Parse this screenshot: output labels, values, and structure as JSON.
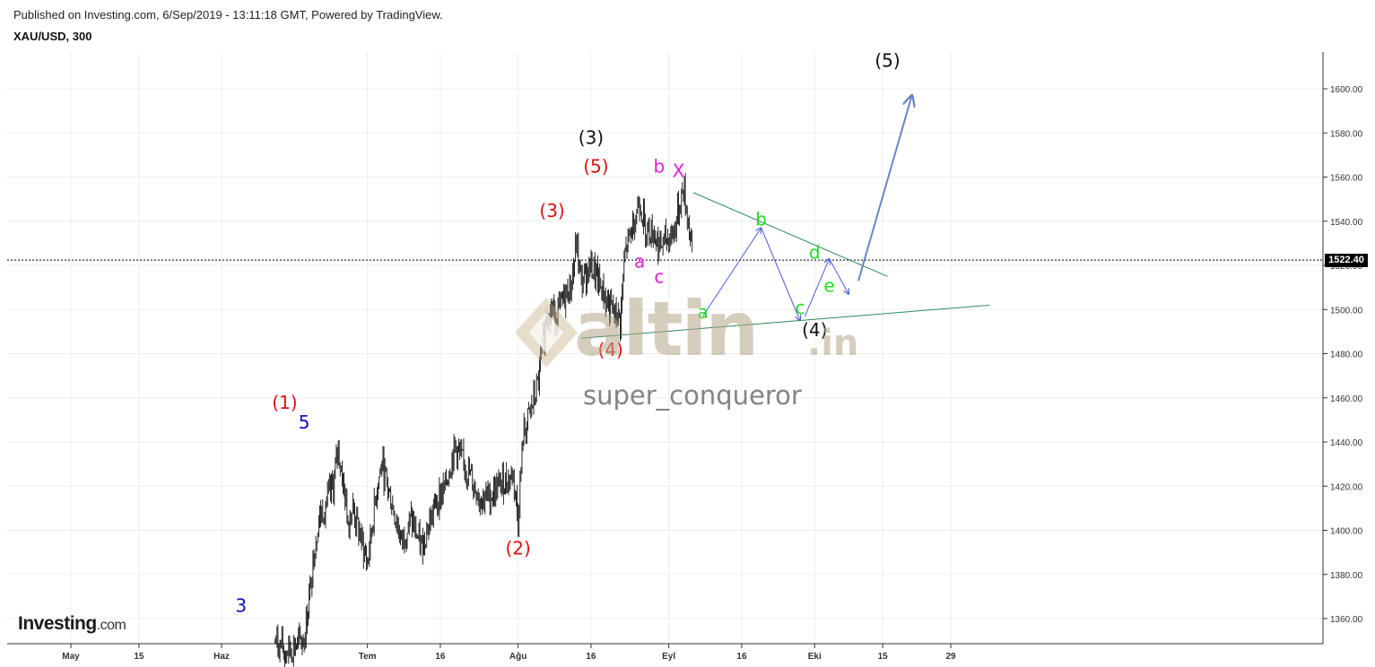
{
  "header": {
    "published": "Published on Investing.com, 6/Sep/2019 - 13:11:18 GMT, Powered by TradingView.",
    "symbol": "XAU/USD, 300"
  },
  "logo": {
    "brand": "Investing",
    "suffix": ".com"
  },
  "watermark": {
    "main": "altin",
    "sub": ".in",
    "user": "super_conqueror"
  },
  "colors": {
    "candle": "#111111",
    "grid": "#eeeeee",
    "trend_green": "#2e8b57",
    "projection": "#4a5bd6",
    "projection_big": "#6b84c8",
    "red_label": "#dd1111",
    "magenta_label": "#e020e0",
    "blue_label": "#1010c0",
    "green_label": "#22dd22",
    "black_label": "#111111"
  },
  "chart_data": {
    "type": "candlestick",
    "title": "XAU/USD, 300",
    "ylim": [
      1347,
      1618
    ],
    "y_ticks": [
      1360,
      1380,
      1400,
      1420,
      1440,
      1460,
      1480,
      1500,
      1520,
      1540,
      1560,
      1580,
      1600
    ],
    "y_tick_labels": [
      "1360.00",
      "1380.00",
      "1400.00",
      "1420.00",
      "1440.00",
      "1460.00",
      "1480.00",
      "1500.00",
      "1520.00",
      "1540.00",
      "1560.00",
      "1580.00",
      "1600.00"
    ],
    "current_price": 1522.4,
    "current_price_label": "1522.40",
    "x_ticks": [
      {
        "label": "May",
        "date": "2019-05-01"
      },
      {
        "label": "15",
        "date": "2019-05-15"
      },
      {
        "label": "Haz",
        "date": "2019-06-01"
      },
      {
        "label": "Tem",
        "date": "2019-07-01"
      },
      {
        "label": "16",
        "date": "2019-07-16"
      },
      {
        "label": "Ağu",
        "date": "2019-08-01"
      },
      {
        "label": "16",
        "date": "2019-08-16"
      },
      {
        "label": "Eyl",
        "date": "2019-09-01"
      },
      {
        "label": "16",
        "date": "2019-09-16"
      },
      {
        "label": "Eki",
        "date": "2019-10-01"
      },
      {
        "label": "15",
        "date": "2019-10-15"
      },
      {
        "label": "29",
        "date": "2019-10-29"
      }
    ],
    "price_path": [
      [
        "2019-06-12",
        1350
      ],
      [
        "2019-06-14",
        1345
      ],
      [
        "2019-06-18",
        1350
      ],
      [
        "2019-06-20",
        1390
      ],
      [
        "2019-06-21",
        1405
      ],
      [
        "2019-06-24",
        1420
      ],
      [
        "2019-06-25",
        1438
      ],
      [
        "2019-06-27",
        1405
      ],
      [
        "2019-06-28",
        1410
      ],
      [
        "2019-07-01",
        1385
      ],
      [
        "2019-07-03",
        1420
      ],
      [
        "2019-07-04",
        1430
      ],
      [
        "2019-07-08",
        1395
      ],
      [
        "2019-07-10",
        1405
      ],
      [
        "2019-07-12",
        1392
      ],
      [
        "2019-07-15",
        1412
      ],
      [
        "2019-07-17",
        1420
      ],
      [
        "2019-07-19",
        1438
      ],
      [
        "2019-07-22",
        1425
      ],
      [
        "2019-07-24",
        1415
      ],
      [
        "2019-07-26",
        1415
      ],
      [
        "2019-07-29",
        1422
      ],
      [
        "2019-07-31",
        1425
      ],
      [
        "2019-08-01",
        1405
      ],
      [
        "2019-08-02",
        1442
      ],
      [
        "2019-08-05",
        1465
      ],
      [
        "2019-08-07",
        1500
      ],
      [
        "2019-08-09",
        1498
      ],
      [
        "2019-08-12",
        1512
      ],
      [
        "2019-08-13",
        1530
      ],
      [
        "2019-08-14",
        1512
      ],
      [
        "2019-08-16",
        1520
      ],
      [
        "2019-08-20",
        1500
      ],
      [
        "2019-08-22",
        1495
      ],
      [
        "2019-08-23",
        1525
      ],
      [
        "2019-08-26",
        1550
      ],
      [
        "2019-08-27",
        1538
      ],
      [
        "2019-08-29",
        1535
      ],
      [
        "2019-08-30",
        1528
      ],
      [
        "2019-09-02",
        1535
      ],
      [
        "2019-09-04",
        1555
      ],
      [
        "2019-09-05",
        1540
      ],
      [
        "2019-09-06",
        1522
      ]
    ],
    "trendlines": [
      {
        "name": "upper",
        "from": [
          "2019-09-06",
          1553
        ],
        "to": [
          "2019-10-16",
          1515
        ]
      },
      {
        "name": "lower",
        "from": [
          "2019-08-14",
          1487
        ],
        "to": [
          "2019-11-06",
          1502
        ]
      }
    ],
    "projection": [
      [
        "2019-09-08",
        1497
      ],
      [
        "2019-09-20",
        1537
      ],
      [
        "2019-09-28",
        1495
      ],
      [
        "2019-09-29",
        1497
      ],
      [
        "2019-10-04",
        1523
      ],
      [
        "2019-10-08",
        1507
      ]
    ],
    "projection_big": [
      [
        "2019-10-10",
        1513
      ],
      [
        "2019-10-21",
        1597
      ]
    ],
    "annotations": [
      {
        "text": "(3)",
        "date": "2019-08-16",
        "price": 1575,
        "color": "black_label"
      },
      {
        "text": "(5)",
        "date": "2019-08-17",
        "price": 1562,
        "color": "red_label"
      },
      {
        "text": "(3)",
        "date": "2019-08-08",
        "price": 1542,
        "color": "red_label"
      },
      {
        "text": "(4)",
        "date": "2019-08-20",
        "price": 1479,
        "color": "red_label"
      },
      {
        "text": "(1)",
        "date": "2019-06-14",
        "price": 1455,
        "color": "red_label"
      },
      {
        "text": "(2)",
        "date": "2019-08-01",
        "price": 1389,
        "color": "red_label"
      },
      {
        "text": "5",
        "date": "2019-06-18",
        "price": 1446,
        "color": "blue_label"
      },
      {
        "text": "3",
        "date": "2019-06-05",
        "price": 1363,
        "color": "blue_label"
      },
      {
        "text": "b",
        "date": "2019-08-30",
        "price": 1562,
        "color": "magenta_label"
      },
      {
        "text": "X",
        "date": "2019-09-03",
        "price": 1560,
        "color": "magenta_label"
      },
      {
        "text": "a",
        "date": "2019-08-26",
        "price": 1519,
        "color": "magenta_label"
      },
      {
        "text": "c",
        "date": "2019-08-30",
        "price": 1512,
        "color": "magenta_label"
      },
      {
        "text": "b",
        "date": "2019-09-20",
        "price": 1538,
        "color": "green_label"
      },
      {
        "text": "a",
        "date": "2019-09-08",
        "price": 1496,
        "color": "green_label"
      },
      {
        "text": "c",
        "date": "2019-09-28",
        "price": 1498,
        "color": "green_label"
      },
      {
        "text": "d",
        "date": "2019-10-01",
        "price": 1523,
        "color": "green_label"
      },
      {
        "text": "e",
        "date": "2019-10-04",
        "price": 1508,
        "color": "green_label"
      },
      {
        "text": "(4)",
        "date": "2019-10-01",
        "price": 1488,
        "color": "black_label"
      },
      {
        "text": "(5)",
        "date": "2019-10-16",
        "price": 1610,
        "color": "black_label"
      }
    ]
  }
}
